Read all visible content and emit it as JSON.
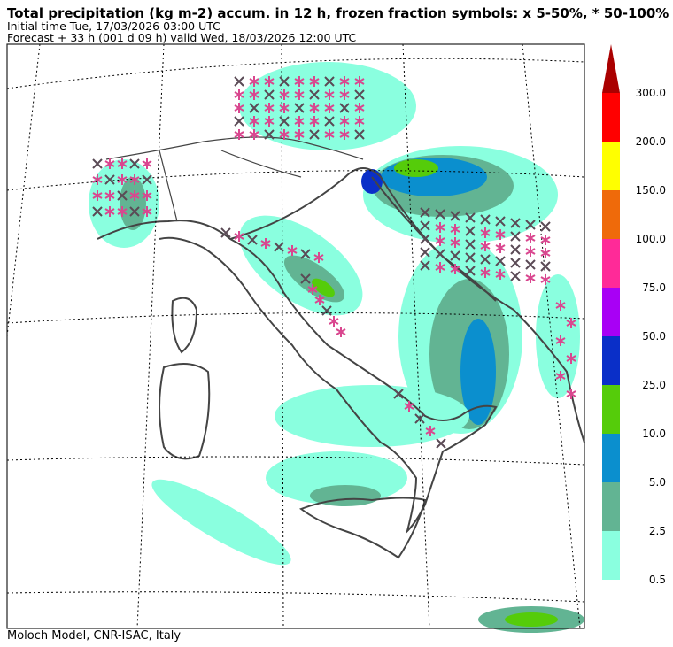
{
  "header": {
    "title": "Total precipitation (kg m-2) accum. in 12 h, frozen fraction symbols: x 5-50%, * 50-100%",
    "initial_time": "Initial time  Tue, 17/03/2026  03:00 UTC",
    "forecast": "Forecast  +  33 h  (001 d 09 h)  valid Wed, 18/03/2026 12:00 UTC"
  },
  "colorbar": {
    "labels": [
      "0.5",
      "2.5",
      "5.0",
      "10.0",
      "25.0",
      "50.0",
      "75.0",
      "100.0",
      "150.0",
      "200.0",
      "300.0"
    ],
    "colors": [
      "#8affdf",
      "#62b493",
      "#0b8fce",
      "#55cc0a",
      "#0a2fc8",
      "#a800f5",
      "#ff2a98",
      "#ef6a0a",
      "#ffff00",
      "#ff0000",
      "#aa0000"
    ]
  },
  "footer": "Moloch Model, CNR-ISAC, Italy"
}
